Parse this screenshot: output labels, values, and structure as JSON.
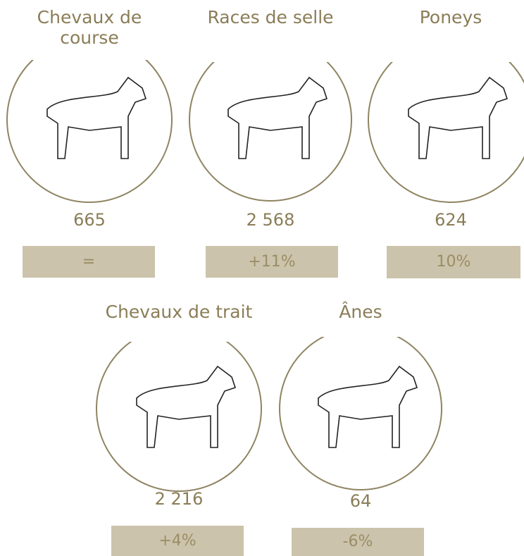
{
  "items": [
    {
      "title": "Chevaux de course",
      "count": "665",
      "change": "="
    },
    {
      "title": "Races de selle",
      "count": "2 568",
      "change": "+11%"
    },
    {
      "title": "Poneys",
      "count": "624",
      "change": "10%"
    },
    {
      "title": "Chevaux de trait",
      "count": "2 216",
      "change": "+4%"
    },
    {
      "title": "Ânes",
      "count": "64",
      "change": "-6%"
    }
  ]
}
